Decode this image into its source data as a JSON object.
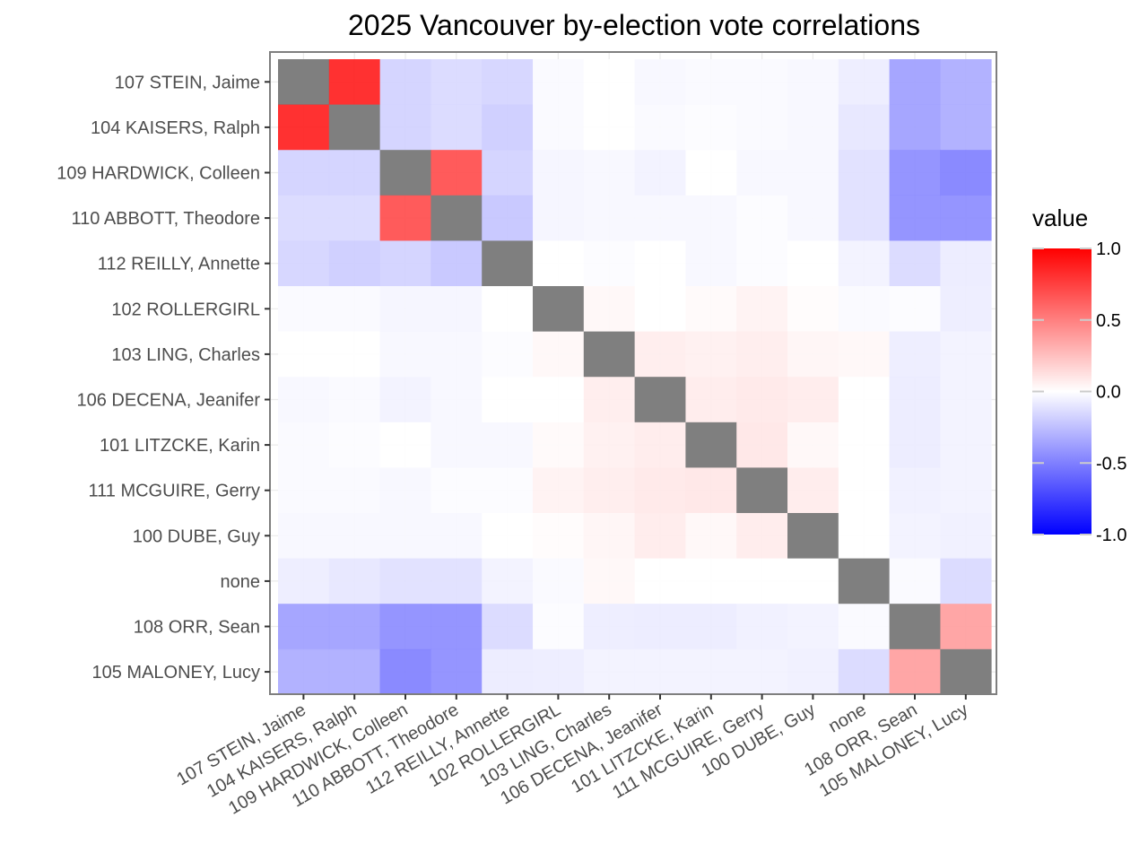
{
  "chart_data": {
    "type": "heatmap",
    "title": "2025 Vancouver by-election vote correlations",
    "xlabel": "",
    "ylabel": "",
    "candidates": [
      "107 STEIN, Jaime",
      "104 KAISERS, Ralph",
      "109 HARDWICK, Colleen",
      "110 ABBOTT, Theodore",
      "112 REILLY, Annette",
      "102 ROLLERGIRL",
      "103 LING, Charles",
      "106 DECENA, Jeanifer",
      "101 LITZCKE, Karin",
      "111 MCGUIRE, Gerry",
      "100 DUBE, Guy",
      "none",
      "108 ORR, Sean",
      "105 MALONEY, Lucy"
    ],
    "matrix": [
      [
        null,
        0.88,
        -0.18,
        -0.15,
        -0.17,
        -0.02,
        0.0,
        -0.03,
        -0.02,
        -0.02,
        -0.03,
        -0.07,
        -0.38,
        -0.33
      ],
      [
        0.88,
        null,
        -0.18,
        -0.15,
        -0.2,
        -0.02,
        0.0,
        -0.02,
        -0.01,
        -0.02,
        -0.03,
        -0.1,
        -0.38,
        -0.33
      ],
      [
        -0.18,
        -0.18,
        null,
        0.7,
        -0.18,
        -0.04,
        -0.03,
        -0.05,
        0.0,
        -0.03,
        -0.03,
        -0.12,
        -0.45,
        -0.5
      ],
      [
        -0.15,
        -0.15,
        0.7,
        null,
        -0.23,
        -0.04,
        -0.03,
        -0.03,
        -0.03,
        -0.01,
        -0.03,
        -0.12,
        -0.45,
        -0.45
      ],
      [
        -0.17,
        -0.2,
        -0.18,
        -0.23,
        null,
        0.0,
        -0.01,
        0.0,
        -0.03,
        -0.01,
        0.0,
        -0.05,
        -0.15,
        -0.08
      ],
      [
        -0.02,
        -0.02,
        -0.04,
        -0.04,
        0.0,
        null,
        0.03,
        0.0,
        0.02,
        0.05,
        0.01,
        -0.02,
        -0.01,
        -0.07
      ],
      [
        0.0,
        0.0,
        -0.03,
        -0.03,
        -0.01,
        0.03,
        null,
        0.07,
        0.06,
        0.07,
        0.04,
        0.03,
        -0.07,
        -0.05
      ],
      [
        -0.03,
        -0.02,
        -0.05,
        -0.03,
        0.0,
        0.0,
        0.07,
        null,
        0.08,
        0.09,
        0.08,
        0.0,
        -0.08,
        -0.05
      ],
      [
        -0.02,
        -0.01,
        0.0,
        -0.03,
        -0.03,
        0.02,
        0.06,
        0.08,
        null,
        0.1,
        0.03,
        0.0,
        -0.08,
        -0.05
      ],
      [
        -0.02,
        -0.02,
        -0.03,
        -0.01,
        -0.01,
        0.05,
        0.07,
        0.09,
        0.1,
        null,
        0.08,
        0.0,
        -0.06,
        -0.05
      ],
      [
        -0.03,
        -0.03,
        -0.03,
        -0.03,
        0.0,
        0.01,
        0.04,
        0.08,
        0.03,
        0.08,
        null,
        0.0,
        -0.05,
        -0.06
      ],
      [
        -0.07,
        -0.1,
        -0.12,
        -0.12,
        -0.05,
        -0.02,
        0.03,
        0.0,
        0.0,
        0.0,
        0.0,
        null,
        -0.02,
        -0.15
      ],
      [
        -0.38,
        -0.38,
        -0.45,
        -0.45,
        -0.15,
        -0.01,
        -0.07,
        -0.08,
        -0.08,
        -0.06,
        -0.05,
        -0.02,
        null,
        0.38
      ],
      [
        -0.33,
        -0.33,
        -0.5,
        -0.45,
        -0.08,
        -0.07,
        -0.05,
        -0.05,
        -0.05,
        -0.05,
        -0.06,
        -0.15,
        0.38,
        null
      ]
    ],
    "diagonal_color": "#7f7f7f",
    "colors": {
      "low": "#0000ff",
      "mid": "#ffffff",
      "high": "#ff0000"
    },
    "value_range": [
      -1,
      1
    ],
    "legend": {
      "title": "value",
      "placement": "right",
      "ticks": [
        1.0,
        0.5,
        0.0,
        -0.5,
        -1.0
      ],
      "tick_labels": [
        "1.0",
        "0.5",
        "0.0",
        "-0.5",
        "-1.0"
      ]
    },
    "grid": true
  }
}
